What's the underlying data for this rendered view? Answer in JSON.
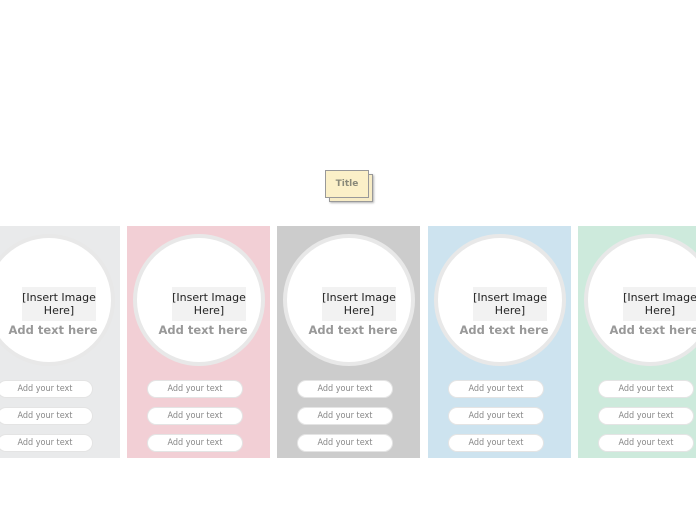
{
  "title": "Title",
  "panels": [
    {
      "color": "#e9eaeb",
      "image": "[Insert Image Here]",
      "text": "Add text here",
      "items": [
        "Add your text",
        "Add your text",
        "Add your text"
      ]
    },
    {
      "color": "#f2cfd5",
      "image": "[Insert Image Here]",
      "text": "Add text here",
      "items": [
        "Add your text",
        "Add your text",
        "Add your text"
      ]
    },
    {
      "color": "#cccccc",
      "image": "[Insert Image Here]",
      "text": "Add text here",
      "items": [
        "Add your text",
        "Add your text",
        "Add your text"
      ]
    },
    {
      "color": "#cde3ef",
      "image": "[Insert Image Here]",
      "text": "Add text here",
      "items": [
        "Add your text",
        "Add your text",
        "Add your text"
      ]
    },
    {
      "color": "#cdeadc",
      "image": "[Insert Image Here]",
      "text": "Add text here",
      "items": [
        "Add your text",
        "Add your text",
        "Add your text"
      ]
    }
  ]
}
